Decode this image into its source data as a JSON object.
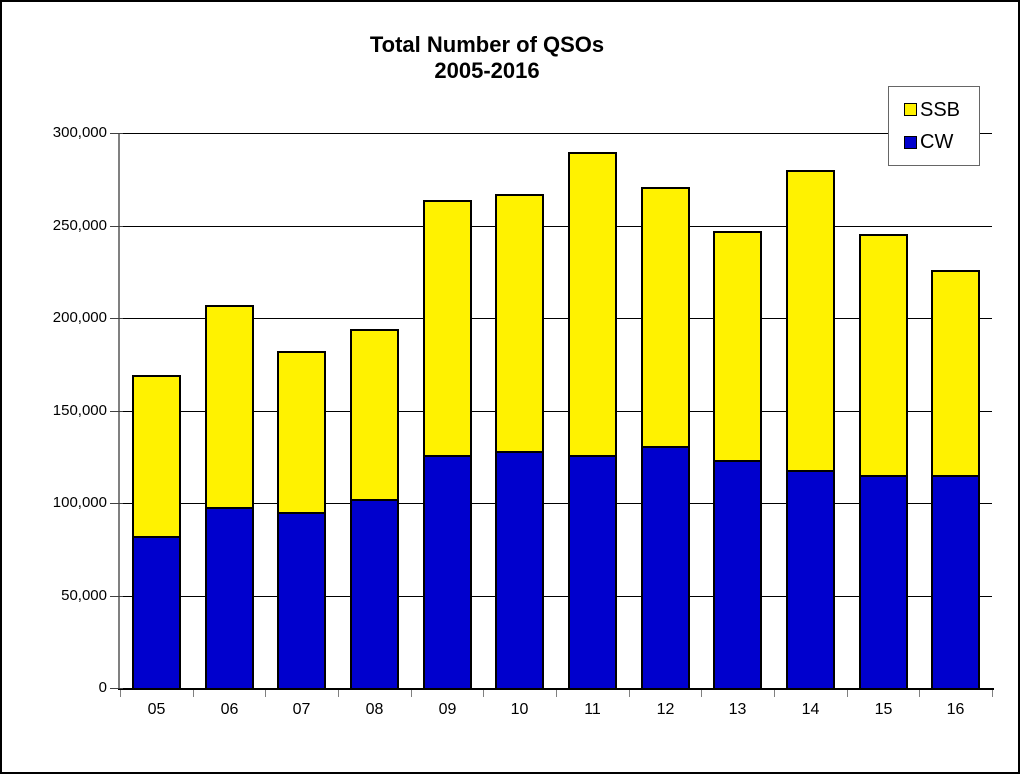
{
  "title": {
    "line1": "Total Number of QSOs",
    "line2": "2005-2016"
  },
  "legend": {
    "items": [
      {
        "label": "SSB",
        "color": "#fff200"
      },
      {
        "label": "CW",
        "color": "#0000cd"
      }
    ]
  },
  "colors": {
    "ssb": "#fff200",
    "cw": "#0000cd",
    "gridline": "#000000",
    "axis": "#808080",
    "background": "#ffffff"
  },
  "chart_data": {
    "type": "bar",
    "stacked": true,
    "title": "Total Number of QSOs 2005-2016",
    "xlabel": "",
    "ylabel": "",
    "categories": [
      "05",
      "06",
      "07",
      "08",
      "09",
      "10",
      "11",
      "12",
      "13",
      "14",
      "15",
      "16"
    ],
    "series": [
      {
        "name": "CW",
        "color": "#0000cd",
        "values": [
          82000,
          98000,
          95000,
          102000,
          126000,
          128000,
          126000,
          131000,
          123000,
          118000,
          115000,
          115000
        ]
      },
      {
        "name": "SSB",
        "color": "#fff200",
        "values": [
          87000,
          109000,
          87000,
          92000,
          138000,
          139000,
          164000,
          140000,
          124000,
          162000,
          130000,
          111000
        ]
      }
    ],
    "totals": [
      169000,
      207000,
      182000,
      194000,
      264000,
      267000,
      290000,
      271000,
      247000,
      280000,
      245000,
      226000
    ],
    "ylim": [
      0,
      300000
    ],
    "ytick_interval": 50000,
    "ytick_labels": [
      "0",
      "50,000",
      "100,000",
      "150,000",
      "200,000",
      "250,000",
      "300,000"
    ],
    "grid": true,
    "legend_position": "top-right"
  }
}
